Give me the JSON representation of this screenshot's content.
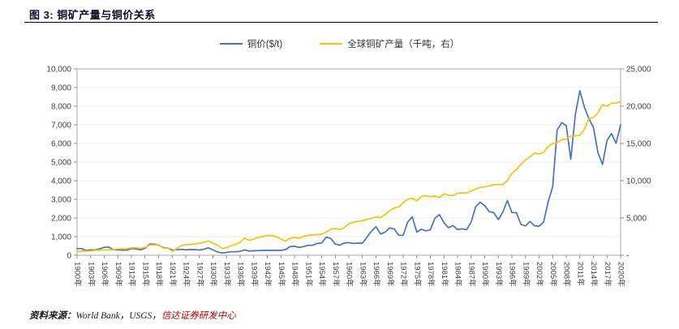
{
  "header": {
    "title": "图 3: 铜矿产量与铜价关系"
  },
  "legend": [
    {
      "label": "铜价($/t)",
      "color": "#4472C4"
    },
    {
      "label": "全球铜矿产量（千吨，右）",
      "color": "#FFC000"
    }
  ],
  "footer": {
    "source_label": "资料来源：",
    "source_text": "World Bank，USGS，",
    "source_org": "信达证券研发中心",
    "source_org_color": "#C00000"
  },
  "chart_data": {
    "type": "line",
    "title": "铜矿产量与铜价关系",
    "grid": "horizontal",
    "legend_position": "top-center",
    "x": {
      "start": 1900,
      "end": 2020,
      "step": 1
    },
    "x_tick_suffix": "年",
    "x_ticks": [
      1900,
      1903,
      1906,
      1909,
      1912,
      1915,
      1918,
      1921,
      1924,
      1927,
      1930,
      1933,
      1936,
      1939,
      1942,
      1945,
      1948,
      1951,
      1954,
      1957,
      1960,
      1963,
      1966,
      1969,
      1972,
      1975,
      1978,
      1981,
      1984,
      1987,
      1990,
      1993,
      1996,
      1999,
      2002,
      2005,
      2008,
      2011,
      2014,
      2017,
      2020
    ],
    "left_axis": {
      "min": 0,
      "max": 10000,
      "tick_labels": [
        "0",
        "1,000",
        "2,000",
        "3,000",
        "4,000",
        "5,000",
        "6,000",
        "7,000",
        "8,000",
        "9,000",
        "10,000"
      ]
    },
    "right_axis": {
      "min": 0,
      "max": 25000,
      "tick_labels": [
        "-",
        "5,000",
        "10,000",
        "15,000",
        "20,000",
        "25,000"
      ]
    },
    "series": [
      {
        "name": "铜价($/t)",
        "axis": "left",
        "color": "#4472C4",
        "values": [
          357,
          355,
          256,
          291,
          282,
          344,
          425,
          441,
          291,
          287,
          280,
          273,
          359,
          337,
          293,
          381,
          600,
          600,
          542,
          412,
          386,
          276,
          295,
          317,
          287,
          309,
          304,
          284,
          322,
          399,
          287,
          179,
          123,
          154,
          185,
          190,
          209,
          291,
          220,
          242,
          249,
          260,
          260,
          260,
          260,
          260,
          304,
          463,
          485,
          423,
          467,
          534,
          534,
          635,
          655,
          970,
          905,
          598,
          545,
          656,
          677,
          634,
          646,
          646,
          968,
          1290,
          1530,
          1140,
          1241,
          1466,
          1416,
          1080,
          1071,
          1786,
          2059,
          1237,
          1401,
          1310,
          1367,
          1985,
          2182,
          1742,
          1480,
          1592,
          1377,
          1417,
          1374,
          1783,
          2602,
          2848,
          2662,
          2339,
          2281,
          1913,
          2307,
          2936,
          2295,
          2277,
          1654,
          1573,
          1813,
          1578,
          1560,
          1780,
          2868,
          3679,
          6722,
          7118,
          6956,
          5150,
          7535,
          8828,
          7962,
          7332,
          6863,
          5510,
          4868,
          6170,
          6530,
          6010,
          7000
        ]
      },
      {
        "name": "全球铜矿产量（千吨，右）",
        "axis": "right",
        "color": "#FFC000",
        "values": [
          495,
          529,
          553,
          589,
          648,
          694,
          722,
          719,
          757,
          844,
          874,
          887,
          1003,
          1002,
          935,
          1060,
          1370,
          1400,
          1410,
          960,
          966,
          537,
          880,
          1290,
          1400,
          1470,
          1500,
          1620,
          1720,
          1920,
          1600,
          1380,
          900,
          1010,
          1270,
          1470,
          1720,
          2300,
          2000,
          2150,
          2400,
          2500,
          2650,
          2660,
          2500,
          2160,
          1900,
          2270,
          2390,
          2280,
          2530,
          2660,
          2730,
          2760,
          2830,
          3110,
          3480,
          3590,
          3460,
          3700,
          4240,
          4410,
          4560,
          4630,
          4810,
          4960,
          5130,
          5050,
          5460,
          5950,
          6340,
          6460,
          7060,
          7490,
          7650,
          7290,
          7860,
          7990,
          7870,
          7930,
          7740,
          8230,
          8090,
          8010,
          8320,
          8360,
          8360,
          8590,
          8890,
          9090,
          9160,
          9330,
          9460,
          9490,
          9500,
          10000,
          11000,
          11500,
          12200,
          12800,
          13200,
          13700,
          13600,
          13800,
          14600,
          15000,
          15100,
          15500,
          15600,
          16000,
          16000,
          16100,
          16900,
          18300,
          18500,
          19100,
          20200,
          20000,
          20400,
          20400,
          20600
        ]
      }
    ]
  }
}
